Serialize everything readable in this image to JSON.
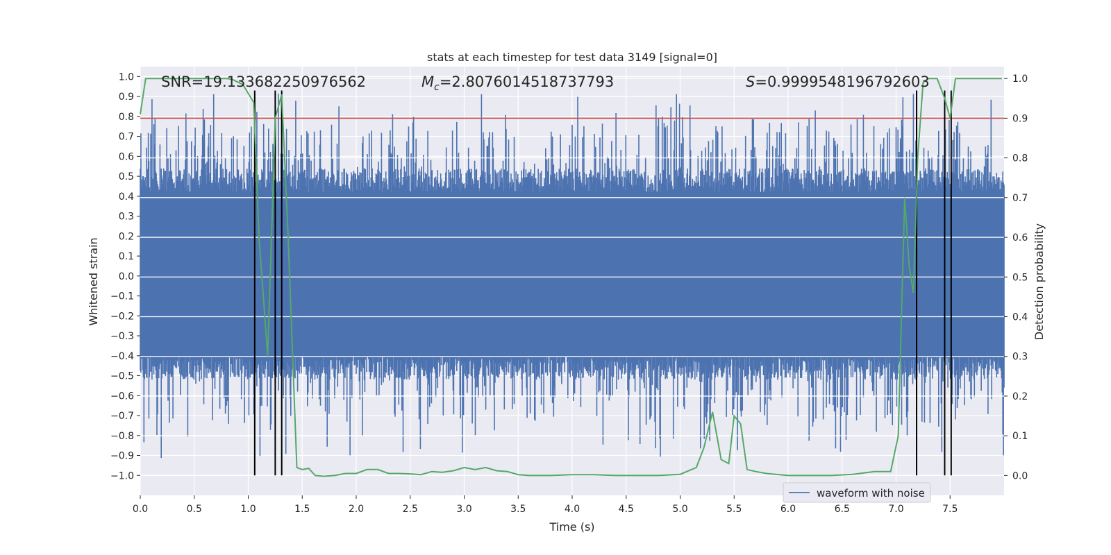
{
  "chart_data": {
    "type": "line",
    "title": "stats at each timestep for test data 3149 [signal=0]",
    "xlabel": "Time (s)",
    "ylabel": "Whitened strain",
    "y2label": "Detection probability",
    "xlim": [
      0.0,
      8.0
    ],
    "ylim": [
      -1.1,
      1.05
    ],
    "y2lim": [
      -0.05,
      1.03
    ],
    "xticks": [
      0.0,
      0.5,
      1.0,
      1.5,
      2.0,
      2.5,
      3.0,
      3.5,
      4.0,
      4.5,
      5.0,
      5.5,
      6.0,
      6.5,
      7.0,
      7.5
    ],
    "xtick_labels": [
      "0.0",
      "0.5",
      "1.0",
      "1.5",
      "2.0",
      "2.5",
      "3.0",
      "3.5",
      "4.0",
      "4.5",
      "5.0",
      "5.5",
      "6.0",
      "6.5",
      "7.0",
      "7.5"
    ],
    "yticks": [
      1.0,
      0.9,
      0.8,
      0.7,
      0.6,
      0.5,
      0.4,
      0.3,
      0.2,
      0.1,
      0.0,
      -0.1,
      -0.2,
      -0.3,
      -0.4,
      -0.5,
      -0.6,
      -0.7,
      -0.8,
      -0.9,
      -1.0
    ],
    "ytick_labels": [
      "1.0",
      "0.9",
      "0.8",
      "0.7",
      "0.6",
      "0.5",
      "0.4",
      "0.3",
      "0.2",
      "0.1",
      "0.0",
      "−0.1",
      "−0.2",
      "−0.3",
      "−0.4",
      "−0.5",
      "−0.6",
      "−0.7",
      "−0.8",
      "−0.9",
      "−1.0"
    ],
    "y2ticks": [
      1.0,
      0.9,
      0.8,
      0.7,
      0.6,
      0.5,
      0.4,
      0.3,
      0.2,
      0.1,
      0.0
    ],
    "y2tick_labels": [
      "1.0",
      "0.9",
      "0.8",
      "0.7",
      "0.6",
      "0.5",
      "0.4",
      "0.3",
      "0.2",
      "0.1",
      "0.0"
    ],
    "annotations": {
      "snr": "SNR=19.133682250976562",
      "mc_symbol": "M",
      "mc_sub": "c",
      "mc_value": "=2.8076014518737793",
      "s_symbol": "S",
      "s_value": "=0.9999548196792603"
    },
    "threshold": {
      "value": 0.9,
      "axis": "y2",
      "color": "#c44e52"
    },
    "event_lines": {
      "x": [
        1.06,
        1.25,
        1.31,
        7.19,
        7.45,
        7.51
      ],
      "y_range": [
        -1.0,
        0.93
      ],
      "color": "#000000"
    },
    "waveform": {
      "name": "waveform with noise",
      "color": "#4c72b0",
      "envelope_upper": 0.42,
      "envelope_lower": -0.4
    },
    "probability": {
      "name": "Detection probability",
      "color": "#55a868",
      "x": [
        0.0,
        0.05,
        0.1,
        0.2,
        0.3,
        0.4,
        0.5,
        0.6,
        0.7,
        0.8,
        0.85,
        0.95,
        1.05,
        1.1,
        1.18,
        1.25,
        1.31,
        1.37,
        1.45,
        1.5,
        1.56,
        1.62,
        1.7,
        1.8,
        1.9,
        2.0,
        2.1,
        2.2,
        2.3,
        2.4,
        2.5,
        2.6,
        2.7,
        2.8,
        2.9,
        3.0,
        3.1,
        3.2,
        3.3,
        3.4,
        3.5,
        3.6,
        3.8,
        4.0,
        4.2,
        4.4,
        4.6,
        4.8,
        5.0,
        5.15,
        5.22,
        5.3,
        5.38,
        5.45,
        5.5,
        5.56,
        5.62,
        5.7,
        5.8,
        6.0,
        6.2,
        6.4,
        6.6,
        6.8,
        6.95,
        7.02,
        7.08,
        7.12,
        7.16,
        7.2,
        7.25,
        7.3,
        7.38,
        7.45,
        7.5,
        7.55,
        7.7,
        7.85,
        7.98
      ],
      "y": [
        0.91,
        1.0,
        1.0,
        1.0,
        1.0,
        1.0,
        1.0,
        1.0,
        1.0,
        1.0,
        0.998,
        0.985,
        0.94,
        0.6,
        0.3,
        0.9,
        0.96,
        0.6,
        0.02,
        0.015,
        0.018,
        0.0,
        -0.002,
        0.0,
        0.005,
        0.005,
        0.015,
        0.015,
        0.005,
        0.005,
        0.004,
        0.002,
        0.01,
        0.008,
        0.012,
        0.02,
        0.015,
        0.02,
        0.012,
        0.01,
        0.002,
        0.0,
        0.0,
        0.002,
        0.002,
        0.0,
        0.0,
        0.0,
        0.003,
        0.02,
        0.07,
        0.16,
        0.04,
        0.03,
        0.15,
        0.13,
        0.015,
        0.01,
        0.005,
        0.0,
        0.0,
        0.0,
        0.003,
        0.01,
        0.01,
        0.1,
        0.7,
        0.53,
        0.46,
        0.8,
        0.99,
        1.0,
        1.0,
        0.95,
        0.9,
        1.0,
        1.0,
        1.0,
        1.0
      ]
    }
  }
}
